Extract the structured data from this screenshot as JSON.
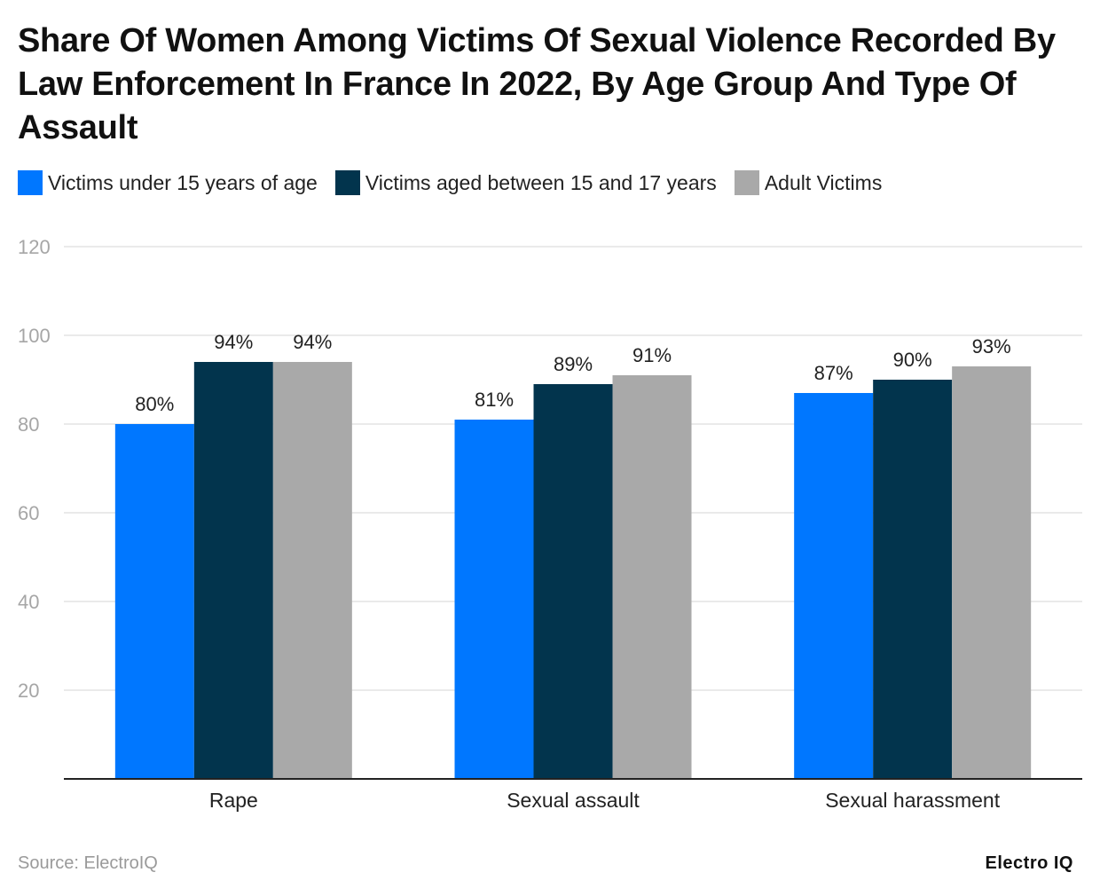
{
  "chart_data": {
    "type": "bar",
    "title": "Share Of Women Among Victims Of Sexual Violence Recorded By Law Enforcement In France In 2022, By Age Group And Type Of Assault",
    "categories": [
      "Rape",
      "Sexual assault",
      "Sexual harassment"
    ],
    "series": [
      {
        "name": "Victims under 15 years of age",
        "values": [
          80,
          81,
          87
        ],
        "labels": [
          "80%",
          "81%",
          "87%"
        ],
        "color": "#0077FF"
      },
      {
        "name": "Victims aged between 15 and 17 years",
        "values": [
          94,
          89,
          90
        ],
        "labels": [
          "94%",
          "89%",
          "90%"
        ],
        "color": "#02344D"
      },
      {
        "name": "Adult Victims",
        "values": [
          94,
          91,
          93
        ],
        "labels": [
          "94%",
          "91%",
          "93%"
        ],
        "color": "#A9A9A9"
      }
    ],
    "yticks": [
      "120",
      "100",
      "80",
      "60",
      "40",
      "20"
    ],
    "ylim": [
      0,
      120
    ],
    "grid": true,
    "legend_position": "top-left",
    "xlabel": "",
    "ylabel": ""
  },
  "footer": {
    "source": "Source: ElectroIQ",
    "brand": "Electro IQ"
  }
}
